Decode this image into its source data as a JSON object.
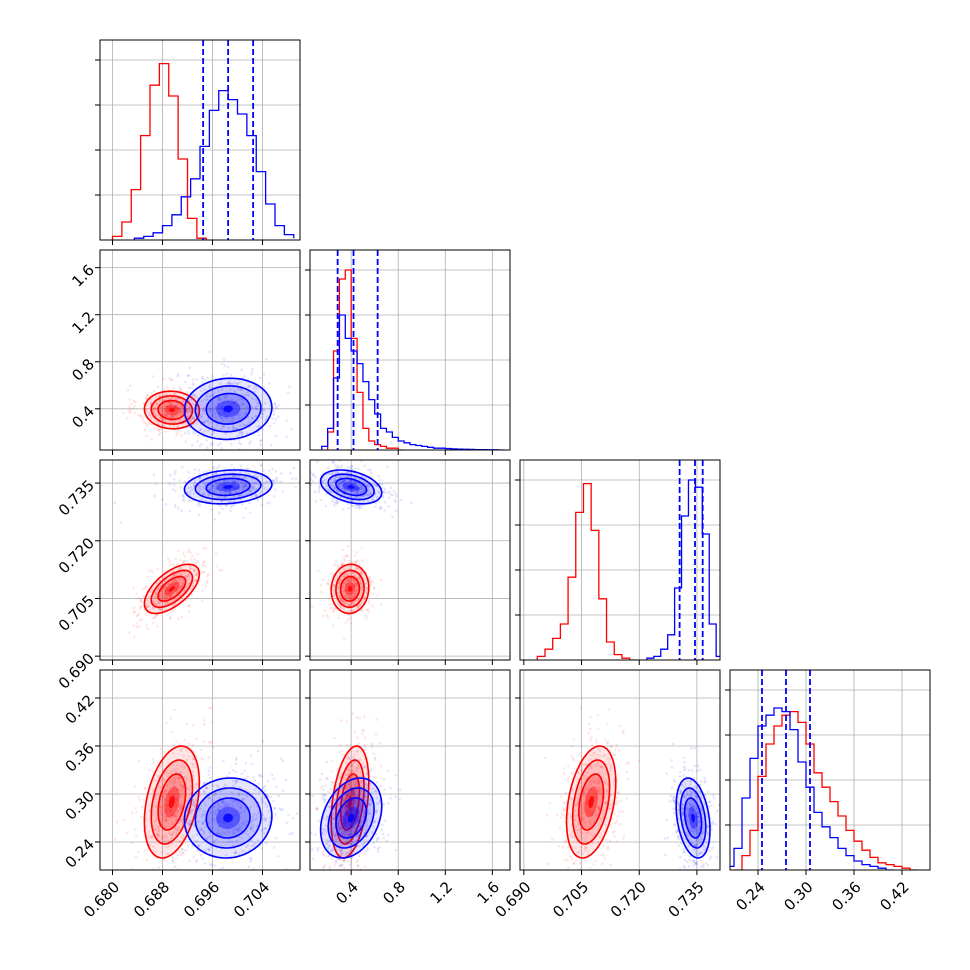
{
  "colors": {
    "series_a": "#ff0000",
    "series_b": "#0000ff",
    "grid": "#b0b0b0",
    "frame": "#000000"
  },
  "chart_data": {
    "type": "corner",
    "grid": true,
    "parameters": [
      {
        "key": "p1",
        "ticks": [
          "0.680",
          "0.688",
          "0.696",
          "0.704"
        ],
        "tick_values": [
          0.68,
          0.688,
          0.696,
          0.704
        ],
        "range": [
          0.678,
          0.71
        ]
      },
      {
        "key": "p2",
        "ticks": [
          "0.4",
          "0.8",
          "1.2",
          "1.6"
        ],
        "tick_values": [
          0.4,
          0.8,
          1.2,
          1.6
        ],
        "range": [
          0.05,
          1.75
        ]
      },
      {
        "key": "p3",
        "ticks": [
          "0.690",
          "0.705",
          "0.720",
          "0.735"
        ],
        "tick_values": [
          0.69,
          0.705,
          0.72,
          0.735
        ],
        "range": [
          0.689,
          0.741
        ]
      },
      {
        "key": "p4",
        "ticks": [
          "0.24",
          "0.30",
          "0.36",
          "0.42"
        ],
        "tick_values": [
          0.24,
          0.3,
          0.36,
          0.42
        ],
        "range": [
          0.205,
          0.455
        ]
      }
    ],
    "series": [
      {
        "color": "#ff0000",
        "means": [
          0.6895,
          0.39,
          0.7075,
          0.29
        ],
        "sds": [
          0.0022,
          0.08,
          0.0032,
          0.035
        ],
        "correlations": {
          "1-0": -0.05,
          "2-0": 0.6,
          "2-1": 0.05,
          "3-0": 0.35,
          "3-1": 0.35,
          "3-2": 0.35
        },
        "hist": {
          "p1": {
            "bins": [
              0.68,
              0.6815,
              0.683,
              0.6845,
              0.686,
              0.6875,
              0.689,
              0.6905,
              0.692,
              0.6935,
              0.695
            ],
            "counts": [
              0.02,
              0.1,
              0.28,
              0.58,
              0.86,
              0.98,
              0.8,
              0.45,
              0.12,
              0.01
            ]
          },
          "p2": {
            "bins": [
              0.2,
              0.25,
              0.3,
              0.35,
              0.4,
              0.45,
              0.5,
              0.55,
              0.6,
              0.65,
              0.7,
              0.75,
              0.8,
              0.85
            ],
            "counts": [
              0.1,
              0.55,
              0.95,
              1.0,
              0.62,
              0.32,
              0.12,
              0.05,
              0.03,
              0.02,
              0.01,
              0.01,
              0.0
            ]
          },
          "p3": {
            "bins": [
              0.6935,
              0.6955,
              0.6975,
              0.6995,
              0.7015,
              0.7035,
              0.7055,
              0.7075,
              0.7095,
              0.7115,
              0.7135,
              0.7155,
              0.7175,
              0.7195
            ],
            "counts": [
              0.02,
              0.06,
              0.12,
              0.2,
              0.46,
              0.82,
              0.98,
              0.72,
              0.34,
              0.1,
              0.03,
              0.01,
              0.0
            ]
          },
          "p4": {
            "bins": [
              0.21,
              0.22,
              0.23,
              0.24,
              0.25,
              0.26,
              0.27,
              0.28,
              0.29,
              0.3,
              0.31,
              0.32,
              0.33,
              0.34,
              0.35,
              0.36,
              0.37,
              0.38,
              0.39,
              0.4,
              0.41,
              0.42,
              0.43,
              0.44
            ],
            "counts": [
              0.0,
              0.08,
              0.22,
              0.52,
              0.7,
              0.8,
              0.86,
              0.88,
              0.82,
              0.7,
              0.54,
              0.46,
              0.38,
              0.3,
              0.22,
              0.16,
              0.11,
              0.07,
              0.04,
              0.03,
              0.02,
              0.01,
              0.0
            ]
          }
        }
      },
      {
        "color": "#0000ff",
        "means": [
          0.6985,
          0.4,
          0.734,
          0.27
        ],
        "sds": [
          0.0035,
          0.13,
          0.0022,
          0.025
        ],
        "correlations": {
          "1-0": 0.05,
          "2-0": 0.15,
          "2-1": -0.35,
          "3-0": 0.05,
          "3-1": 0.3,
          "3-2": -0.3
        },
        "quantiles": {
          "p1": [
            0.6945,
            0.6985,
            0.7025
          ],
          "p2": [
            0.285,
            0.42,
            0.625
          ],
          "p3": [
            0.7305,
            0.7345,
            0.7365
          ],
          "p4": [
            0.245,
            0.275,
            0.305
          ]
        },
        "hist": {
          "p1": {
            "bins": [
              0.6835,
              0.685,
              0.6865,
              0.688,
              0.6895,
              0.691,
              0.6925,
              0.694,
              0.6955,
              0.697,
              0.6985,
              0.7,
              0.7015,
              0.703,
              0.7045,
              0.706,
              0.7075,
              0.709
            ],
            "counts": [
              0.01,
              0.02,
              0.04,
              0.08,
              0.14,
              0.24,
              0.34,
              0.52,
              0.72,
              0.83,
              0.78,
              0.7,
              0.58,
              0.38,
              0.2,
              0.08,
              0.03,
              0.01
            ]
          },
          "p2": {
            "bins": [
              0.15,
              0.2,
              0.25,
              0.3,
              0.35,
              0.4,
              0.45,
              0.5,
              0.55,
              0.6,
              0.65,
              0.7,
              0.75,
              0.8,
              0.85,
              0.9,
              0.95,
              1.0,
              1.05,
              1.1,
              1.15,
              1.2,
              1.25,
              1.3,
              1.35,
              1.4,
              1.45,
              1.5,
              1.55,
              1.6,
              1.65,
              1.7
            ],
            "counts": [
              0.02,
              0.12,
              0.4,
              0.75,
              0.62,
              0.55,
              0.48,
              0.38,
              0.28,
              0.2,
              0.12,
              0.1,
              0.07,
              0.05,
              0.04,
              0.03,
              0.025,
              0.02,
              0.015,
              0.01,
              0.01,
              0.008,
              0.006,
              0.005,
              0.004,
              0.003,
              0.002,
              0.002,
              0.001,
              0.001,
              0.0
            ]
          },
          "p3": {
            "bins": [
              0.722,
              0.7238,
              0.7256,
              0.7274,
              0.7292,
              0.731,
              0.7328,
              0.7346,
              0.7364,
              0.7382,
              0.74,
              0.7418
            ],
            "counts": [
              0.01,
              0.02,
              0.06,
              0.14,
              0.4,
              0.8,
              1.0,
              0.96,
              0.7,
              0.2,
              0.02
            ]
          },
          "p4": {
            "bins": [
              0.2,
              0.21,
              0.22,
              0.23,
              0.24,
              0.25,
              0.26,
              0.27,
              0.28,
              0.29,
              0.3,
              0.31,
              0.32,
              0.33,
              0.34,
              0.35,
              0.36,
              0.37,
              0.38,
              0.39,
              0.4,
              0.41
            ],
            "counts": [
              0.02,
              0.12,
              0.4,
              0.62,
              0.8,
              0.86,
              0.9,
              0.88,
              0.78,
              0.6,
              0.46,
              0.32,
              0.24,
              0.18,
              0.12,
              0.08,
              0.05,
              0.03,
              0.02,
              0.01,
              0.0
            ]
          }
        }
      }
    ]
  }
}
